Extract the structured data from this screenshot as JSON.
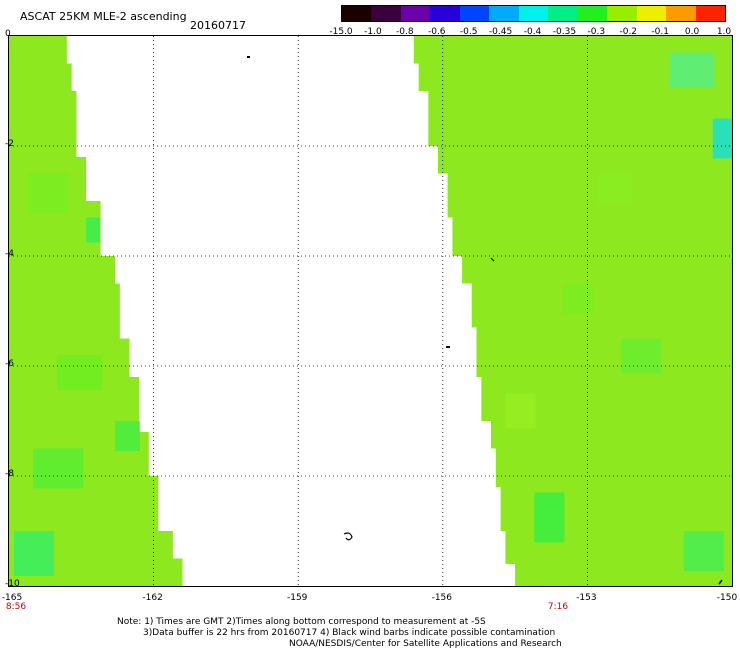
{
  "header": {
    "title": "ASCAT 25KM MLE-2 ascending",
    "date": "20160717"
  },
  "colorbar": {
    "labels": [
      "-15.0",
      "-1.0",
      "-0.8",
      "-0.6",
      "-0.5",
      "-0.45",
      "-0.4",
      "-0.35",
      "-0.3",
      "-0.2",
      "-0.1",
      "0.0",
      "1.0"
    ],
    "colors": [
      "#1a0000",
      "#3b003b",
      "#6b00a8",
      "#2800d8",
      "#0044ff",
      "#00aaff",
      "#00f0ee",
      "#00ee88",
      "#22ee22",
      "#99ee00",
      "#eeee00",
      "#ff9900",
      "#ff2200"
    ]
  },
  "map": {
    "lat_labels": [
      "0",
      "-2",
      "-4",
      "-6",
      "-8",
      "-10"
    ],
    "lon_labels": [
      "-165",
      "-162",
      "-159",
      "-156",
      "-153",
      "-150"
    ],
    "time_labels": [
      "8:56",
      "7:16"
    ],
    "lat_range": [
      -10,
      0
    ],
    "lon_range": [
      -165,
      -150
    ],
    "swath_left_east_edge": [
      [
        0,
        -163.8
      ],
      [
        -0.5,
        -163.7
      ],
      [
        -1,
        -163.6
      ],
      [
        -2.2,
        -163.4
      ],
      [
        -3,
        -163.1
      ],
      [
        -4,
        -162.8
      ],
      [
        -4.5,
        -162.7
      ],
      [
        -5.5,
        -162.5
      ],
      [
        -6.2,
        -162.3
      ],
      [
        -7.2,
        -162.1
      ],
      [
        -8,
        -161.9
      ],
      [
        -9,
        -161.6
      ],
      [
        -9.5,
        -161.4
      ],
      [
        -10,
        -161.3
      ]
    ],
    "swath_right_west_edge": [
      [
        0,
        -156.6
      ],
      [
        -0.5,
        -156.5
      ],
      [
        -1,
        -156.3
      ],
      [
        -2,
        -156.1
      ],
      [
        -2.5,
        -155.9
      ],
      [
        -3.3,
        -155.8
      ],
      [
        -4,
        -155.6
      ],
      [
        -4.5,
        -155.4
      ],
      [
        -5.3,
        -155.3
      ],
      [
        -6.2,
        -155.2
      ],
      [
        -7,
        -155
      ],
      [
        -7.5,
        -154.9
      ],
      [
        -8.2,
        -154.8
      ],
      [
        -9,
        -154.7
      ],
      [
        -9.6,
        -154.5
      ],
      [
        -10,
        -154.4
      ]
    ]
  },
  "notes": {
    "line1": "Note: 1) Times are GMT 2)Times along bottom correspond to measurement at -5S",
    "line2": "3)Data buffer is 22 hrs from 20160717 4) Black wind barbs indicate possible contamination",
    "line3": "NOAA/NESDIS/Center for Satellite Applications and Research"
  }
}
